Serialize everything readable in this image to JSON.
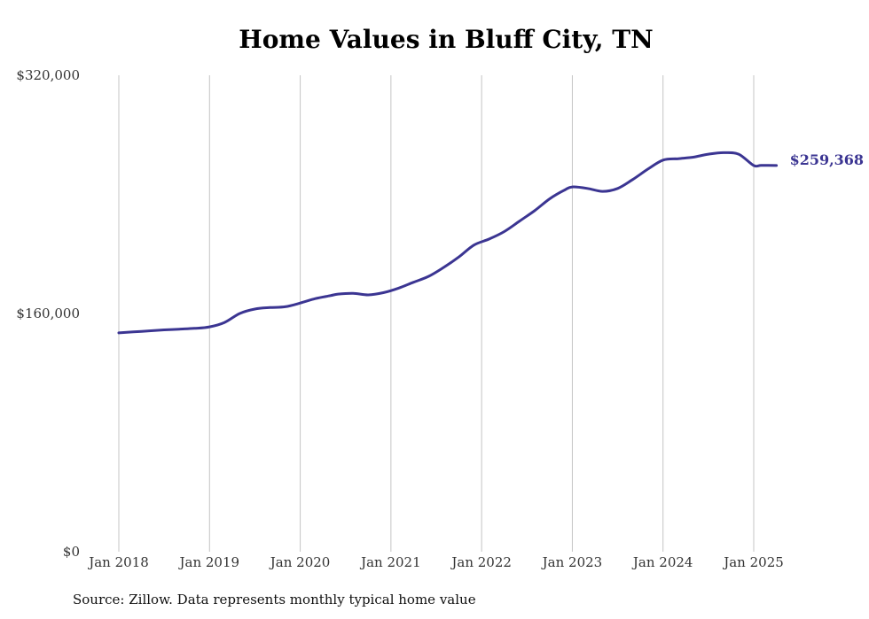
{
  "chart_data": {
    "type": "line",
    "title": "Home Values in Bluff City, TN",
    "xlabel": "",
    "ylabel": "",
    "ylim": [
      0,
      320000
    ],
    "y_ticks": [
      "$0",
      "$160,000",
      "$320,000"
    ],
    "y_tick_values": [
      0,
      160000,
      320000
    ],
    "x_ticks": [
      "Jan 2018",
      "Jan 2019",
      "Jan 2020",
      "Jan 2021",
      "Jan 2022",
      "Jan 2023",
      "Jan 2024",
      "Jan 2025"
    ],
    "x_tick_years": [
      2018,
      2019,
      2020,
      2021,
      2022,
      2023,
      2024,
      2025
    ],
    "grid": "vertical",
    "line_color": "#3b3592",
    "end_label": "$259,368",
    "series": [
      {
        "x": [
          "2018-01",
          "2018-04",
          "2018-07",
          "2018-09",
          "2018-11",
          "2019-01",
          "2019-03",
          "2019-05",
          "2019-07",
          "2019-09",
          "2019-11",
          "2020-01",
          "2020-03",
          "2020-05",
          "2020-06",
          "2020-08",
          "2020-10",
          "2020-12",
          "2021-02",
          "2021-04",
          "2021-06",
          "2021-08",
          "2021-10",
          "2021-12",
          "2022-02",
          "2022-04",
          "2022-06",
          "2022-08",
          "2022-10",
          "2022-12",
          "2023-01",
          "2023-03",
          "2023-05",
          "2023-07",
          "2023-09",
          "2023-11",
          "2024-01",
          "2024-03",
          "2024-05",
          "2024-07",
          "2024-09",
          "2024-11",
          "2025-01",
          "2025-02",
          "2025-04"
        ],
        "values": [
          147000,
          148000,
          149000,
          149500,
          150000,
          151000,
          154000,
          160000,
          163000,
          164000,
          164500,
          167000,
          170000,
          172000,
          173000,
          173500,
          172500,
          174000,
          177000,
          181000,
          185000,
          191000,
          198000,
          206000,
          210000,
          215000,
          222000,
          229000,
          237000,
          243000,
          245000,
          244000,
          242000,
          244000,
          250000,
          257000,
          263000,
          264000,
          265000,
          267000,
          268000,
          267000,
          259368,
          259500,
          259368
        ]
      }
    ],
    "source": "Source: Zillow. Data represents monthly typical home value"
  }
}
